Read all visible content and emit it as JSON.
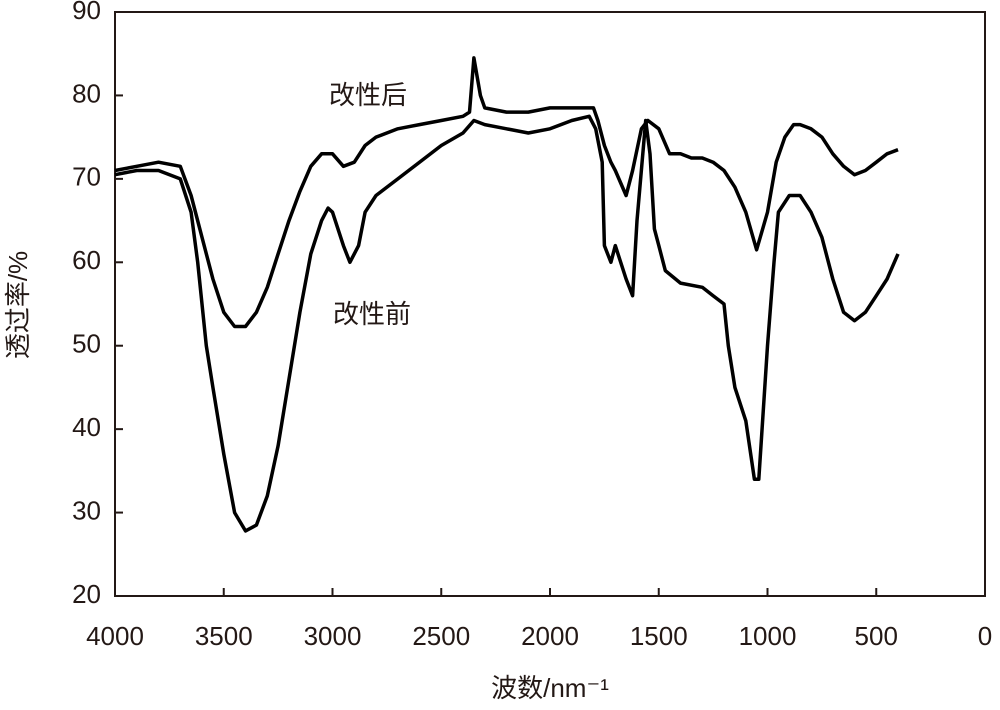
{
  "chart_data": {
    "type": "line",
    "x_label": "波数/nm⁻¹",
    "y_label": "透过率/%",
    "annotations": [
      "改性后",
      "改性前"
    ],
    "xlim": [
      4000,
      0
    ],
    "ylim": [
      20,
      90
    ],
    "xticks": [
      4000,
      3500,
      3000,
      2500,
      2000,
      1500,
      1000,
      500,
      0
    ],
    "yticks": [
      20,
      30,
      40,
      50,
      60,
      70,
      80,
      90
    ],
    "series": [
      {
        "name": "改性后",
        "color": "#000000",
        "x": [
          4000,
          3900,
          3800,
          3700,
          3650,
          3600,
          3550,
          3500,
          3450,
          3400,
          3350,
          3300,
          3250,
          3200,
          3150,
          3100,
          3050,
          3000,
          2950,
          2900,
          2850,
          2800,
          2700,
          2600,
          2500,
          2400,
          2370,
          2350,
          2320,
          2300,
          2200,
          2100,
          2000,
          1900,
          1800,
          1780,
          1750,
          1720,
          1700,
          1650,
          1620,
          1580,
          1550,
          1500,
          1450,
          1400,
          1350,
          1300,
          1250,
          1200,
          1150,
          1100,
          1050,
          1000,
          960,
          920,
          880,
          850,
          800,
          750,
          700,
          650,
          600,
          550,
          500,
          450,
          400
        ],
        "values": [
          71,
          71.5,
          72,
          71.5,
          68,
          63,
          58,
          54,
          52.3,
          52.3,
          54,
          57,
          61,
          65,
          68.5,
          71.5,
          73,
          73,
          71.5,
          72,
          74,
          75,
          76,
          76.5,
          77,
          77.5,
          78,
          84.5,
          80,
          78.5,
          78,
          78,
          78.5,
          78.5,
          78.5,
          77,
          74,
          72,
          71,
          68,
          71,
          76,
          77,
          76,
          73,
          73,
          72.5,
          72.5,
          72,
          71,
          69,
          66,
          61.5,
          66,
          72,
          75,
          76.5,
          76.5,
          76,
          75,
          73,
          71.5,
          70.5,
          71,
          72,
          73,
          73.5
        ]
      },
      {
        "name": "改性前",
        "color": "#000000",
        "x": [
          4000,
          3900,
          3800,
          3700,
          3650,
          3620,
          3580,
          3550,
          3500,
          3450,
          3400,
          3350,
          3300,
          3250,
          3200,
          3150,
          3100,
          3050,
          3020,
          3000,
          2950,
          2920,
          2880,
          2850,
          2800,
          2700,
          2600,
          2500,
          2400,
          2350,
          2300,
          2200,
          2100,
          2000,
          1900,
          1820,
          1790,
          1760,
          1750,
          1720,
          1700,
          1650,
          1620,
          1600,
          1560,
          1540,
          1520,
          1500,
          1470,
          1400,
          1300,
          1250,
          1200,
          1180,
          1150,
          1100,
          1060,
          1040,
          1000,
          970,
          950,
          900,
          850,
          800,
          750,
          700,
          650,
          600,
          550,
          500,
          450,
          400
        ],
        "values": [
          70.5,
          71,
          71,
          70,
          66,
          60,
          50,
          45,
          37,
          30,
          27.8,
          28.5,
          32,
          38,
          46,
          54,
          61,
          65,
          66.5,
          66,
          62,
          60,
          62,
          66,
          68,
          70,
          72,
          74,
          75.5,
          77,
          76.5,
          76,
          75.5,
          76,
          77,
          77.5,
          76,
          72,
          62,
          60,
          62,
          58,
          56,
          65,
          77,
          73,
          64,
          62,
          59,
          57.5,
          57,
          56,
          55,
          50,
          45,
          41,
          34,
          34,
          50,
          60,
          66,
          68,
          68,
          66,
          63,
          58,
          54,
          53,
          54,
          56,
          58,
          61
        ]
      }
    ]
  }
}
